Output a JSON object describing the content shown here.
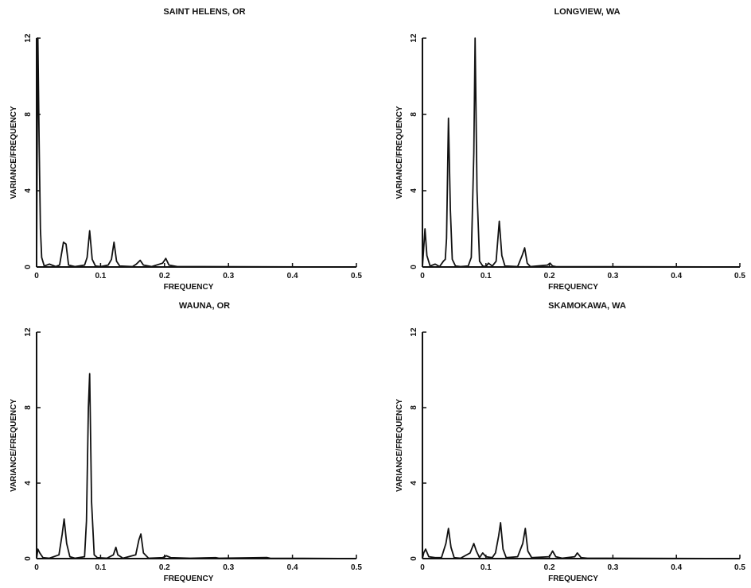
{
  "chart_data": [
    {
      "type": "line",
      "title": "SAINT HELENS, OR",
      "xlabel": "FREQUENCY",
      "ylabel": "VARIANCE/FREQUENCY",
      "xlim": [
        0,
        0.5
      ],
      "ylim": [
        0,
        12
      ],
      "xticks": [
        0,
        0.1,
        0.2,
        0.3,
        0.4,
        0.5
      ],
      "xtick_labels": [
        "0",
        "0.1",
        "0.2",
        "0.3",
        "0.4",
        "0.5"
      ],
      "yticks": [
        0,
        4,
        8,
        12
      ],
      "ytick_labels": [
        "0",
        "4",
        "8",
        "12"
      ],
      "grid": false,
      "series": [
        {
          "points": [
            [
              0,
              0
            ],
            [
              0.001,
              7.0
            ],
            [
              0.002,
              12.0
            ],
            [
              0.004,
              6.5
            ],
            [
              0.006,
              2.0
            ],
            [
              0.008,
              0.5
            ],
            [
              0.012,
              0.05
            ],
            [
              0.02,
              0.15
            ],
            [
              0.03,
              0.02
            ],
            [
              0.036,
              0.1
            ],
            [
              0.042,
              1.3
            ],
            [
              0.046,
              1.2
            ],
            [
              0.05,
              0.1
            ],
            [
              0.06,
              0.02
            ],
            [
              0.075,
              0.1
            ],
            [
              0.079,
              0.5
            ],
            [
              0.083,
              1.9
            ],
            [
              0.087,
              0.4
            ],
            [
              0.092,
              0.05
            ],
            [
              0.1,
              0.02
            ],
            [
              0.112,
              0.1
            ],
            [
              0.117,
              0.4
            ],
            [
              0.121,
              1.3
            ],
            [
              0.125,
              0.3
            ],
            [
              0.13,
              0.05
            ],
            [
              0.15,
              0.02
            ],
            [
              0.156,
              0.15
            ],
            [
              0.162,
              0.35
            ],
            [
              0.167,
              0.1
            ],
            [
              0.18,
              0.02
            ],
            [
              0.197,
              0.2
            ],
            [
              0.202,
              0.45
            ],
            [
              0.207,
              0.1
            ],
            [
              0.22,
              0.02
            ],
            [
              0.5,
              0
            ]
          ]
        }
      ]
    },
    {
      "type": "line",
      "title": "LONGVIEW, WA",
      "xlabel": "FREQUENCY",
      "ylabel": "VARIANCE/FREQUENCY",
      "xlim": [
        0,
        0.5
      ],
      "ylim": [
        0,
        12
      ],
      "xticks": [
        0,
        0.1,
        0.2,
        0.3,
        0.4,
        0.5
      ],
      "xtick_labels": [
        "0",
        "0.1",
        "0.2",
        "0.3",
        "0.4",
        "0.5"
      ],
      "yticks": [
        0,
        4,
        8,
        12
      ],
      "ytick_labels": [
        "0",
        "4",
        "8",
        "12"
      ],
      "grid": false,
      "series": [
        {
          "points": [
            [
              0,
              0
            ],
            [
              0.002,
              1.0
            ],
            [
              0.004,
              2.0
            ],
            [
              0.007,
              0.6
            ],
            [
              0.012,
              0.05
            ],
            [
              0.02,
              0.15
            ],
            [
              0.027,
              0.02
            ],
            [
              0.033,
              0.3
            ],
            [
              0.036,
              0.4
            ],
            [
              0.038,
              1.5
            ],
            [
              0.041,
              7.8
            ],
            [
              0.044,
              3.0
            ],
            [
              0.047,
              0.4
            ],
            [
              0.052,
              0.05
            ],
            [
              0.06,
              0.02
            ],
            [
              0.072,
              0.05
            ],
            [
              0.077,
              0.5
            ],
            [
              0.081,
              6.0
            ],
            [
              0.083,
              12.0
            ],
            [
              0.086,
              4.0
            ],
            [
              0.09,
              0.3
            ],
            [
              0.095,
              0.05
            ],
            [
              0.1,
              0.02
            ],
            [
              0.104,
              0.2
            ],
            [
              0.11,
              0.05
            ],
            [
              0.116,
              0.3
            ],
            [
              0.121,
              2.4
            ],
            [
              0.125,
              0.6
            ],
            [
              0.13,
              0.05
            ],
            [
              0.15,
              0.02
            ],
            [
              0.157,
              0.6
            ],
            [
              0.161,
              1.0
            ],
            [
              0.165,
              0.2
            ],
            [
              0.17,
              0.02
            ],
            [
              0.197,
              0.1
            ],
            [
              0.201,
              0.2
            ],
            [
              0.205,
              0.05
            ],
            [
              0.21,
              0.02
            ],
            [
              0.5,
              0
            ]
          ]
        }
      ]
    },
    {
      "type": "line",
      "title": "WAUNA, OR",
      "xlabel": "FREQUENCY",
      "ylabel": "VARIANCE/FREQUENCY",
      "xlim": [
        0,
        0.5
      ],
      "ylim": [
        0,
        12
      ],
      "xticks": [
        0,
        0.1,
        0.2,
        0.3,
        0.4,
        0.5
      ],
      "xtick_labels": [
        "0",
        "0.1",
        "0.2",
        "0.3",
        "0.4",
        "0.5"
      ],
      "yticks": [
        0,
        4,
        8,
        12
      ],
      "ytick_labels": [
        "0",
        "4",
        "8",
        "12"
      ],
      "grid": false,
      "series": [
        {
          "points": [
            [
              0,
              0
            ],
            [
              0.002,
              0.5
            ],
            [
              0.005,
              0.3
            ],
            [
              0.01,
              0.05
            ],
            [
              0.02,
              0.02
            ],
            [
              0.035,
              0.2
            ],
            [
              0.04,
              1.3
            ],
            [
              0.043,
              2.1
            ],
            [
              0.047,
              0.8
            ],
            [
              0.052,
              0.1
            ],
            [
              0.06,
              0.02
            ],
            [
              0.075,
              0.1
            ],
            [
              0.078,
              2.0
            ],
            [
              0.081,
              8.0
            ],
            [
              0.083,
              9.8
            ],
            [
              0.086,
              3.0
            ],
            [
              0.09,
              0.2
            ],
            [
              0.095,
              0.05
            ],
            [
              0.11,
              0.02
            ],
            [
              0.12,
              0.2
            ],
            [
              0.124,
              0.6
            ],
            [
              0.127,
              0.2
            ],
            [
              0.135,
              0.02
            ],
            [
              0.155,
              0.2
            ],
            [
              0.16,
              1.0
            ],
            [
              0.163,
              1.3
            ],
            [
              0.167,
              0.3
            ],
            [
              0.175,
              0.02
            ],
            [
              0.197,
              0.05
            ],
            [
              0.203,
              0.15
            ],
            [
              0.21,
              0.05
            ],
            [
              0.24,
              0.02
            ],
            [
              0.28,
              0.05
            ],
            [
              0.285,
              0.02
            ],
            [
              0.36,
              0.06
            ],
            [
              0.365,
              0.02
            ],
            [
              0.5,
              0
            ]
          ]
        }
      ]
    },
    {
      "type": "line",
      "title": "SKAMOKAWA, WA",
      "xlabel": "FREQUENCY",
      "ylabel": "VARIANCE/FREQUENCY",
      "xlim": [
        0,
        0.5
      ],
      "ylim": [
        0,
        12
      ],
      "xticks": [
        0,
        0.1,
        0.2,
        0.3,
        0.4,
        0.5
      ],
      "xtick_labels": [
        "0",
        "0.1",
        "0.2",
        "0.3",
        "0.4",
        "0.5"
      ],
      "yticks": [
        0,
        4,
        8,
        12
      ],
      "ytick_labels": [
        "0",
        "4",
        "8",
        "12"
      ],
      "grid": false,
      "series": [
        {
          "points": [
            [
              0,
              0
            ],
            [
              0.002,
              0.3
            ],
            [
              0.005,
              0.5
            ],
            [
              0.01,
              0.1
            ],
            [
              0.02,
              0.05
            ],
            [
              0.03,
              0.05
            ],
            [
              0.037,
              0.8
            ],
            [
              0.041,
              1.6
            ],
            [
              0.045,
              0.6
            ],
            [
              0.05,
              0.05
            ],
            [
              0.06,
              0.02
            ],
            [
              0.075,
              0.3
            ],
            [
              0.081,
              0.8
            ],
            [
              0.085,
              0.4
            ],
            [
              0.09,
              0.05
            ],
            [
              0.095,
              0.3
            ],
            [
              0.1,
              0.1
            ],
            [
              0.11,
              0.05
            ],
            [
              0.115,
              0.3
            ],
            [
              0.12,
              1.2
            ],
            [
              0.123,
              1.9
            ],
            [
              0.127,
              0.5
            ],
            [
              0.132,
              0.05
            ],
            [
              0.15,
              0.1
            ],
            [
              0.158,
              0.8
            ],
            [
              0.162,
              1.6
            ],
            [
              0.166,
              0.4
            ],
            [
              0.172,
              0.05
            ],
            [
              0.2,
              0.1
            ],
            [
              0.205,
              0.4
            ],
            [
              0.21,
              0.1
            ],
            [
              0.22,
              0.02
            ],
            [
              0.24,
              0.1
            ],
            [
              0.244,
              0.3
            ],
            [
              0.25,
              0.05
            ],
            [
              0.26,
              0.02
            ],
            [
              0.5,
              0
            ]
          ]
        }
      ]
    }
  ]
}
